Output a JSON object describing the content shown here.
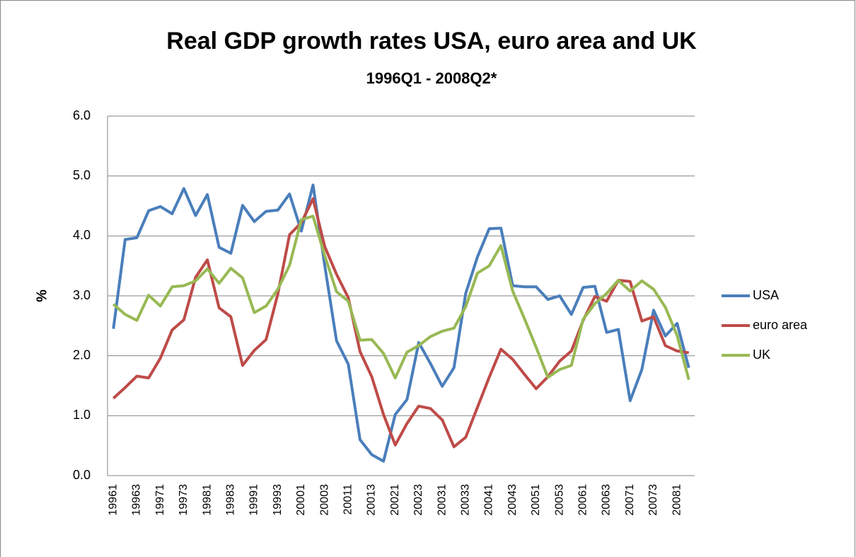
{
  "chart_data": {
    "type": "line",
    "title": "Real GDP growth rates  USA, euro area and UK",
    "subtitle": "1996Q1 - 2008Q2*",
    "y_label": "%",
    "categories": [
      "19961",
      null,
      "19963",
      null,
      "19971",
      null,
      "19973",
      null,
      "19981",
      null,
      "19983",
      null,
      "19991",
      null,
      "19993",
      null,
      "20001",
      null,
      "20003",
      null,
      "20011",
      null,
      "20013",
      null,
      "20021",
      null,
      "20023",
      null,
      "20031",
      null,
      "20033",
      null,
      "20041",
      null,
      "20043",
      null,
      "20051",
      null,
      "20053",
      null,
      "20061",
      null,
      "20063",
      null,
      "20071",
      null,
      "20073",
      null,
      "20081",
      null
    ],
    "series": [
      {
        "name": "USA",
        "color": "#4a7ebb",
        "values": [
          2.45,
          3.94,
          3.97,
          4.42,
          4.49,
          4.37,
          4.79,
          4.34,
          4.69,
          3.81,
          3.71,
          4.51,
          4.24,
          4.41,
          4.43,
          4.7,
          4.08,
          4.85,
          3.5,
          2.25,
          1.86,
          0.6,
          0.35,
          0.24,
          1.02,
          1.27,
          2.22,
          1.87,
          1.49,
          1.8,
          3.04,
          3.65,
          4.12,
          4.13,
          3.17,
          3.15,
          3.15,
          2.94,
          3.0,
          2.69,
          3.14,
          3.16,
          2.39,
          2.44,
          1.25,
          1.77,
          2.76,
          2.33,
          2.54,
          1.8
        ]
      },
      {
        "name": "euro area",
        "color": "#be4b48",
        "values": [
          1.29,
          1.47,
          1.66,
          1.63,
          1.96,
          2.43,
          2.6,
          3.31,
          3.6,
          2.8,
          2.65,
          1.84,
          2.09,
          2.27,
          3.03,
          4.02,
          4.22,
          4.62,
          3.82,
          3.36,
          2.97,
          2.07,
          1.65,
          1.02,
          0.51,
          0.87,
          1.16,
          1.12,
          0.93,
          0.48,
          0.64,
          1.14,
          1.64,
          2.11,
          1.94,
          1.69,
          1.45,
          1.65,
          1.91,
          2.08,
          2.59,
          2.99,
          2.91,
          3.26,
          3.24,
          2.58,
          2.65,
          2.17,
          2.08,
          2.05
        ]
      },
      {
        "name": "UK",
        "color": "#98b954",
        "values": [
          2.86,
          2.69,
          2.59,
          3.01,
          2.83,
          3.15,
          3.17,
          3.25,
          3.45,
          3.21,
          3.46,
          3.3,
          2.72,
          2.83,
          3.11,
          3.51,
          4.27,
          4.33,
          3.67,
          3.07,
          2.91,
          2.26,
          2.27,
          2.04,
          1.63,
          2.06,
          2.17,
          2.32,
          2.41,
          2.46,
          2.82,
          3.38,
          3.5,
          3.84,
          3.08,
          2.62,
          2.14,
          1.64,
          1.77,
          1.84,
          2.61,
          2.87,
          3.04,
          3.26,
          3.08,
          3.25,
          3.11,
          2.81,
          2.34,
          1.6
        ]
      }
    ],
    "ylim": [
      0,
      6
    ],
    "yticks": [
      {
        "value": 0,
        "label": "0.0"
      },
      {
        "value": 1,
        "label": "1.0"
      },
      {
        "value": 2,
        "label": "2.0"
      },
      {
        "value": 3,
        "label": "3.0"
      },
      {
        "value": 4,
        "label": "4.0"
      },
      {
        "value": 5,
        "label": "5.0"
      },
      {
        "value": 6,
        "label": "6.0"
      }
    ],
    "grid": true,
    "legend": "right"
  }
}
